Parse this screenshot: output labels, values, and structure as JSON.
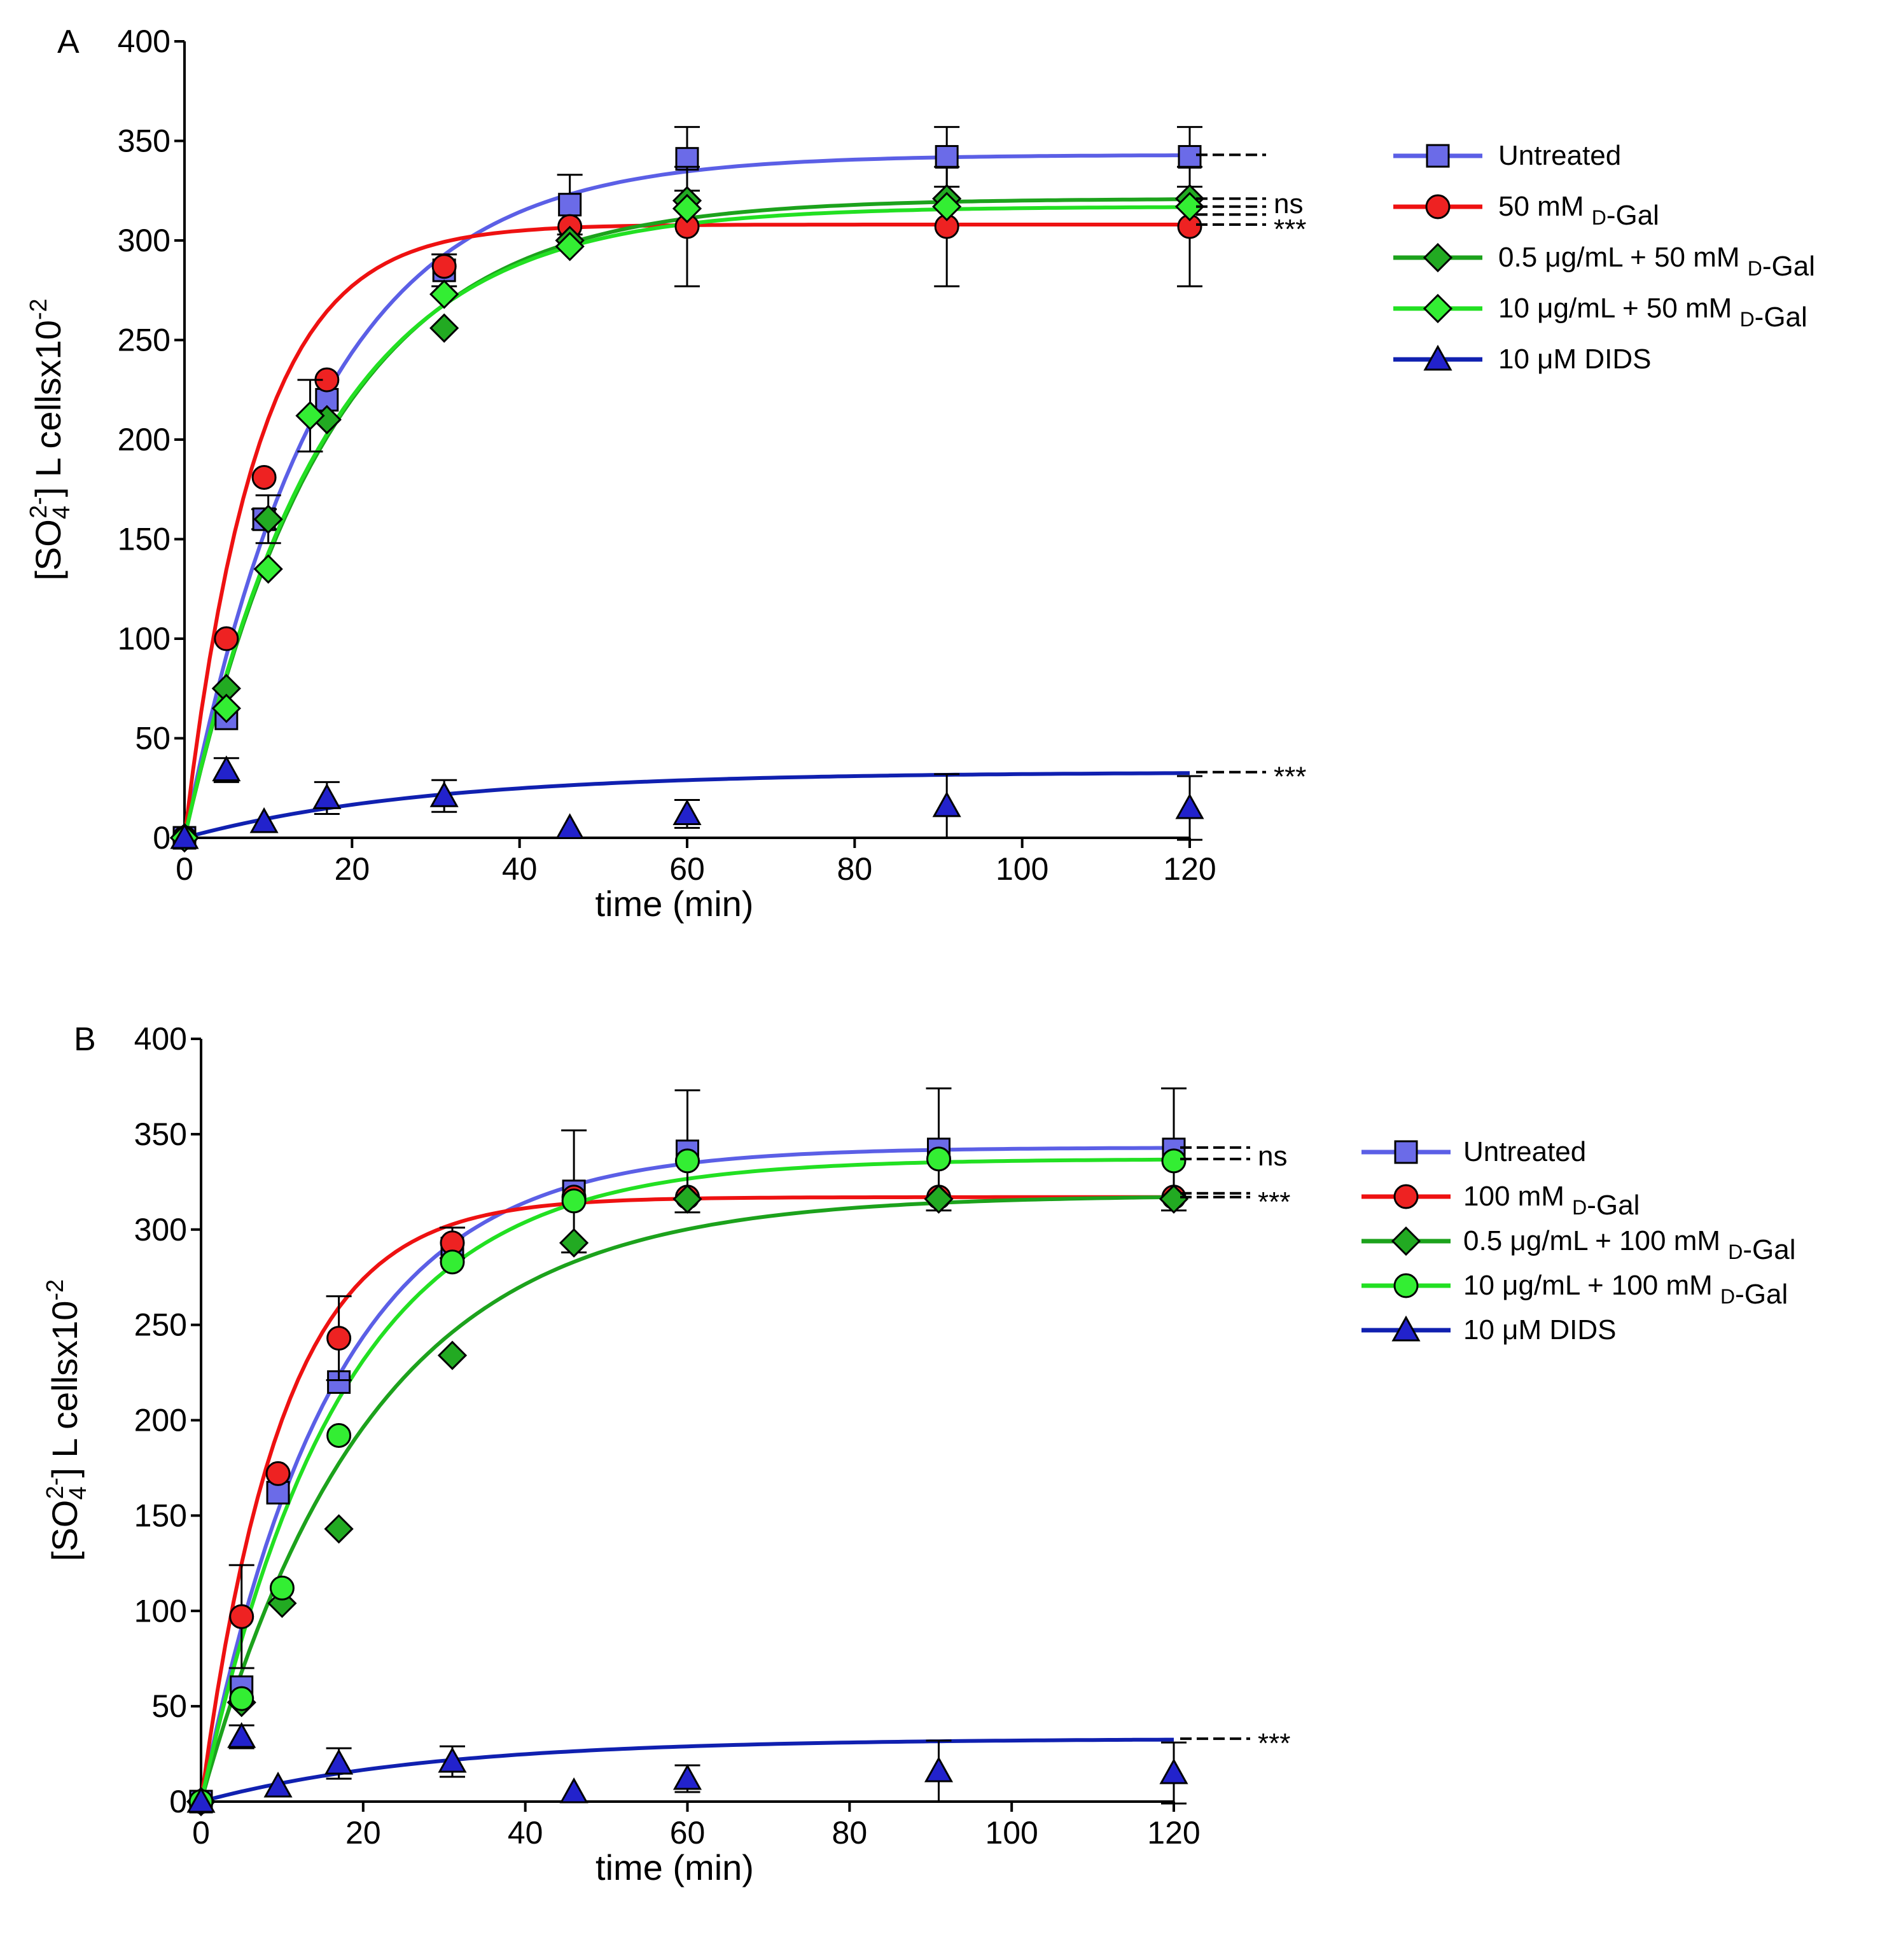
{
  "chart_data": [
    {
      "type": "scatter",
      "panel_label": "A",
      "xlabel": "time (min)",
      "ylabel_main": "[SO",
      "ylabel_sub": "4",
      "ylabel_sup": "2-",
      "ylabel_rest": "] L cellsx10",
      "ylabel_exp": "-2",
      "xlim": [
        0,
        120
      ],
      "ylim": [
        0,
        400
      ],
      "x_ticks": [
        0,
        20,
        40,
        60,
        80,
        100,
        120
      ],
      "y_ticks": [
        0,
        50,
        100,
        150,
        200,
        250,
        300,
        350,
        400
      ],
      "legend_position": "right",
      "series": [
        {
          "key": "untreated",
          "label_parts": [
            "Untreated"
          ],
          "color": "#5b5fe6",
          "marker": "square",
          "marker_color": "#6b6be8",
          "fit": {
            "a": 343,
            "k": 0.062
          },
          "points": [
            {
              "x": 0,
              "y": 0
            },
            {
              "x": 5,
              "y": 60
            },
            {
              "x": 9.5,
              "y": 160,
              "err": 5
            },
            {
              "x": 17,
              "y": 220
            },
            {
              "x": 31,
              "y": 285,
              "err": 8
            },
            {
              "x": 46,
              "y": 318,
              "err": 15
            },
            {
              "x": 60,
              "y": 341,
              "err": 16
            },
            {
              "x": 91,
              "y": 342,
              "err": 15
            },
            {
              "x": 120,
              "y": 342,
              "err": 15
            }
          ]
        },
        {
          "key": "gal50",
          "label_parts": [
            "50 mM ",
            "D",
            "-Gal"
          ],
          "color": "#ee1111",
          "marker": "circle",
          "marker_color": "#ee2222",
          "fit": {
            "a": 308,
            "k": 0.115
          },
          "points": [
            {
              "x": 0,
              "y": 0
            },
            {
              "x": 5,
              "y": 100
            },
            {
              "x": 9.5,
              "y": 181
            },
            {
              "x": 17,
              "y": 230
            },
            {
              "x": 31,
              "y": 287
            },
            {
              "x": 46,
              "y": 307
            },
            {
              "x": 60,
              "y": 307,
              "err": 30
            },
            {
              "x": 91,
              "y": 307,
              "err": 30
            },
            {
              "x": 120,
              "y": 307,
              "err": 30
            }
          ]
        },
        {
          "key": "dark_green",
          "label_parts": [
            "0.5 ",
            "μ",
            "g/mL + 50 mM ",
            "D",
            "-Gal"
          ],
          "color": "#1ca21c",
          "marker": "diamond",
          "marker_color": "#22aa22",
          "fit": {
            "a": 321,
            "k": 0.058
          },
          "points": [
            {
              "x": 0,
              "y": 0
            },
            {
              "x": 5,
              "y": 75
            },
            {
              "x": 10,
              "y": 160,
              "err": 12
            },
            {
              "x": 17,
              "y": 210
            },
            {
              "x": 31,
              "y": 256
            },
            {
              "x": 46,
              "y": 300
            },
            {
              "x": 60,
              "y": 320
            },
            {
              "x": 91,
              "y": 321
            },
            {
              "x": 120,
              "y": 321
            }
          ]
        },
        {
          "key": "light_green",
          "label_parts": [
            "10 ",
            "μ",
            "g/mL + 50 mM ",
            "D",
            "-Gal"
          ],
          "color": "#22e022",
          "marker": "diamond",
          "marker_color": "#33ee33",
          "fit": {
            "a": 317,
            "k": 0.06
          },
          "points": [
            {
              "x": 0,
              "y": 0
            },
            {
              "x": 5,
              "y": 65
            },
            {
              "x": 10,
              "y": 135
            },
            {
              "x": 15,
              "y": 212,
              "err": 18
            },
            {
              "x": 31,
              "y": 273
            },
            {
              "x": 46,
              "y": 297
            },
            {
              "x": 60,
              "y": 316
            },
            {
              "x": 91,
              "y": 317
            },
            {
              "x": 120,
              "y": 317
            }
          ]
        },
        {
          "key": "dids",
          "label_parts": [
            "10 ",
            "μ",
            "M DIDS"
          ],
          "color": "#1020b0",
          "marker": "triangle",
          "marker_color": "#2222cc",
          "fit": {
            "a": 33,
            "k": 0.035
          },
          "points": [
            {
              "x": 0,
              "y": 0
            },
            {
              "x": 5,
              "y": 34,
              "err": 6
            },
            {
              "x": 9.5,
              "y": 8
            },
            {
              "x": 17,
              "y": 20,
              "err": 8
            },
            {
              "x": 31,
              "y": 21,
              "err": 8
            },
            {
              "x": 46,
              "y": 5
            },
            {
              "x": 60,
              "y": 12,
              "err": 7
            },
            {
              "x": 91,
              "y": 16,
              "err": 16
            },
            {
              "x": 120,
              "y": 15,
              "err": 16
            }
          ]
        }
      ],
      "annotations": [
        {
          "y": 343,
          "dashes": 1,
          "text": ""
        },
        {
          "y": 321,
          "dashes": 1,
          "text": ""
        },
        {
          "y": 317,
          "dashes": 1,
          "text": "ns"
        },
        {
          "y": 313,
          "dashes": 1,
          "text": ""
        },
        {
          "y": 308,
          "dashes": 1,
          "text": "***"
        },
        {
          "y": 33,
          "dashes": 1,
          "text": "***"
        }
      ]
    },
    {
      "type": "scatter",
      "panel_label": "B",
      "xlabel": "time (min)",
      "ylabel_main": "[SO",
      "ylabel_sub": "4",
      "ylabel_sup": "2-",
      "ylabel_rest": "] L cellsx10",
      "ylabel_exp": "-2",
      "xlim": [
        0,
        120
      ],
      "ylim": [
        0,
        400
      ],
      "x_ticks": [
        0,
        20,
        40,
        60,
        80,
        100,
        120
      ],
      "y_ticks": [
        0,
        50,
        100,
        150,
        200,
        250,
        300,
        350,
        400
      ],
      "legend_position": "right",
      "series": [
        {
          "key": "untreated",
          "label_parts": [
            "Untreated"
          ],
          "color": "#5b5fe6",
          "marker": "square",
          "marker_color": "#6b6be8",
          "fit": {
            "a": 343,
            "k": 0.062
          },
          "points": [
            {
              "x": 0,
              "y": 0
            },
            {
              "x": 5,
              "y": 60
            },
            {
              "x": 9.5,
              "y": 162
            },
            {
              "x": 17,
              "y": 220
            },
            {
              "x": 31,
              "y": 290
            },
            {
              "x": 46,
              "y": 320,
              "err": 32
            },
            {
              "x": 60,
              "y": 341,
              "err": 32
            },
            {
              "x": 91,
              "y": 342,
              "err": 32
            },
            {
              "x": 120,
              "y": 342,
              "err": 32
            }
          ]
        },
        {
          "key": "gal100",
          "label_parts": [
            "100 mM ",
            "D",
            "-Gal"
          ],
          "color": "#ee1111",
          "marker": "circle",
          "marker_color": "#ee2222",
          "fit": {
            "a": 317,
            "k": 0.1
          },
          "points": [
            {
              "x": 0,
              "y": 0
            },
            {
              "x": 5,
              "y": 97,
              "err": 27
            },
            {
              "x": 9.5,
              "y": 172
            },
            {
              "x": 17,
              "y": 243,
              "err": 22
            },
            {
              "x": 31,
              "y": 293,
              "err": 8
            },
            {
              "x": 46,
              "y": 317
            },
            {
              "x": 60,
              "y": 317
            },
            {
              "x": 91,
              "y": 317
            },
            {
              "x": 120,
              "y": 317
            }
          ]
        },
        {
          "key": "dark_green",
          "label_parts": [
            "0.5 ",
            "μ",
            "g/mL + 100 mM ",
            "D",
            "-Gal"
          ],
          "color": "#1ca21c",
          "marker": "diamond",
          "marker_color": "#22aa22",
          "fit": {
            "a": 318,
            "k": 0.048
          },
          "points": [
            {
              "x": 0,
              "y": 0
            },
            {
              "x": 5,
              "y": 52
            },
            {
              "x": 10,
              "y": 104
            },
            {
              "x": 17,
              "y": 143
            },
            {
              "x": 31,
              "y": 234
            },
            {
              "x": 46,
              "y": 293
            },
            {
              "x": 60,
              "y": 316
            },
            {
              "x": 91,
              "y": 316
            },
            {
              "x": 120,
              "y": 316
            }
          ]
        },
        {
          "key": "light_green",
          "label_parts": [
            "10 ",
            "μ",
            "g/mL + 100 mM ",
            "D",
            "-Gal"
          ],
          "color": "#22e022",
          "marker": "circle",
          "marker_color": "#33ee33",
          "fit": {
            "a": 337,
            "k": 0.058
          },
          "points": [
            {
              "x": 0,
              "y": 0
            },
            {
              "x": 5,
              "y": 54
            },
            {
              "x": 10,
              "y": 112
            },
            {
              "x": 17,
              "y": 192
            },
            {
              "x": 31,
              "y": 283
            },
            {
              "x": 46,
              "y": 315
            },
            {
              "x": 60,
              "y": 336
            },
            {
              "x": 91,
              "y": 337
            },
            {
              "x": 120,
              "y": 336
            }
          ]
        },
        {
          "key": "dids",
          "label_parts": [
            "10 ",
            "μ",
            "M DIDS"
          ],
          "color": "#1020b0",
          "marker": "triangle",
          "marker_color": "#2222cc",
          "fit": {
            "a": 33,
            "k": 0.035
          },
          "points": [
            {
              "x": 0,
              "y": 0
            },
            {
              "x": 5,
              "y": 34,
              "err": 6
            },
            {
              "x": 9.5,
              "y": 8
            },
            {
              "x": 17,
              "y": 20,
              "err": 8
            },
            {
              "x": 31,
              "y": 21,
              "err": 8
            },
            {
              "x": 46,
              "y": 5
            },
            {
              "x": 60,
              "y": 12,
              "err": 7
            },
            {
              "x": 91,
              "y": 16,
              "err": 16
            },
            {
              "x": 120,
              "y": 15,
              "err": 16
            }
          ]
        }
      ],
      "annotations": [
        {
          "y": 343,
          "dashes": 1,
          "text": ""
        },
        {
          "y": 337,
          "dashes": 1,
          "text": "ns"
        },
        {
          "y": 319,
          "dashes": 1,
          "text": ""
        },
        {
          "y": 317,
          "dashes": 1,
          "text": "***"
        },
        {
          "y": 33,
          "dashes": 1,
          "text": "***"
        }
      ]
    }
  ]
}
